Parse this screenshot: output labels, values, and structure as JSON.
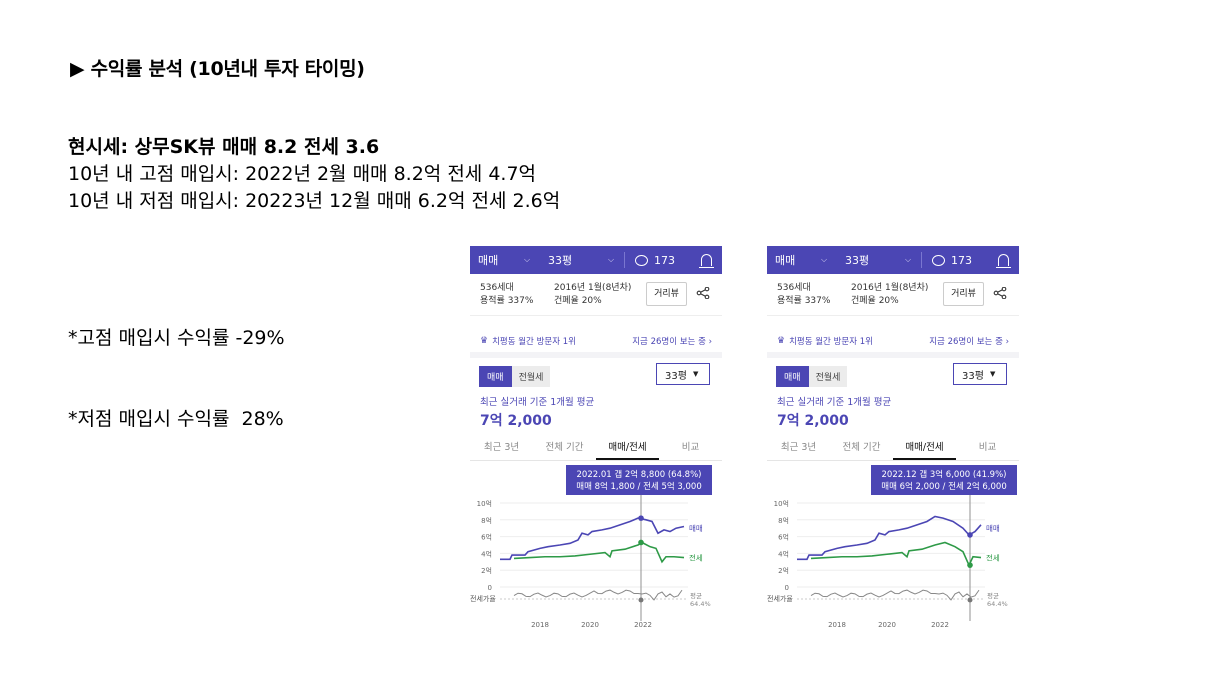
{
  "heading": "▶ 수익률 분석 (10년내 투자 타이밍)",
  "summary": {
    "line1": "현시세: 상무SK뷰 매매 8.2 전세 3.6",
    "line2": "10년 내 고점 매입시: 2022년 2월 매매 8.2억 전세 4.7억",
    "line3": "10년 내 저점 매입시: 20223년 12월 매매 6.2억 전세 2.6억"
  },
  "notes": {
    "high": "*고점 매입시 수익률 -29%",
    "low": "*저점 매입시 수익률  28%"
  },
  "colors": {
    "accent": "#4b46b4",
    "jeonse": "#2e9a47",
    "ratio": "#888888"
  },
  "phones": [
    {
      "topbar": {
        "deal": "매매",
        "size": "33평",
        "comments": "173",
        "icons": [
          "chevron-down-icon",
          "comment-icon",
          "bell-icon"
        ]
      },
      "info": {
        "households": "536세대",
        "far": "용적률 337%",
        "built": "2016년 1월(8년차)",
        "bcr": "건폐율 20%",
        "street_view": "거리뷰"
      },
      "visit": {
        "rank": "치평동 월간 방문자 1위",
        "viewers": "지금 26명이 보는 중 ›"
      },
      "tabs": {
        "sale": "매매",
        "rent": "전월세",
        "size_select": "33평"
      },
      "avg_label": "최근 실거래 기준 1개월 평균",
      "avg_price": "7억 2,000",
      "periods": [
        "최근 3년",
        "전체 기간",
        "매매/전세",
        "비교"
      ],
      "tooltip": {
        "line1": "2022.01  갭 2억 8,800 (64.8%)",
        "line2": "매매 8억 1,800 / 전세 5억 3,000"
      },
      "y_ticks": [
        "10억",
        "8억",
        "6억",
        "4억",
        "2억",
        "0"
      ],
      "series_labels": {
        "sale": "매매",
        "jeonse": "전세"
      },
      "ratio_label": "전세가율",
      "avg_label_right": "평균",
      "avg_pct": "64.4%",
      "x_ticks": [
        "2018",
        "2020",
        "2022"
      ]
    },
    {
      "topbar": {
        "deal": "매매",
        "size": "33평",
        "comments": "173",
        "icons": [
          "chevron-down-icon",
          "comment-icon",
          "bell-icon"
        ]
      },
      "info": {
        "households": "536세대",
        "far": "용적률 337%",
        "built": "2016년 1월(8년차)",
        "bcr": "건폐율 20%",
        "street_view": "거리뷰"
      },
      "visit": {
        "rank": "치평동 월간 방문자 1위",
        "viewers": "지금 26명이 보는 중 ›"
      },
      "tabs": {
        "sale": "매매",
        "rent": "전월세",
        "size_select": "33평"
      },
      "avg_label": "최근 실거래 기준 1개월 평균",
      "avg_price": "7억 2,000",
      "periods": [
        "최근 3년",
        "전체 기간",
        "매매/전세",
        "비교"
      ],
      "tooltip": {
        "line1": "2022.12  갭 3억 6,000 (41.9%)",
        "line2": "매매 6억 2,000 / 전세 2억 6,000"
      },
      "y_ticks": [
        "10억",
        "8억",
        "6억",
        "4억",
        "2억",
        "0"
      ],
      "series_labels": {
        "sale": "매매",
        "jeonse": "전세"
      },
      "ratio_label": "전세가율",
      "avg_label_right": "평균",
      "avg_pct": "64.4%",
      "x_ticks": [
        "2018",
        "2020",
        "2022"
      ]
    }
  ]
}
